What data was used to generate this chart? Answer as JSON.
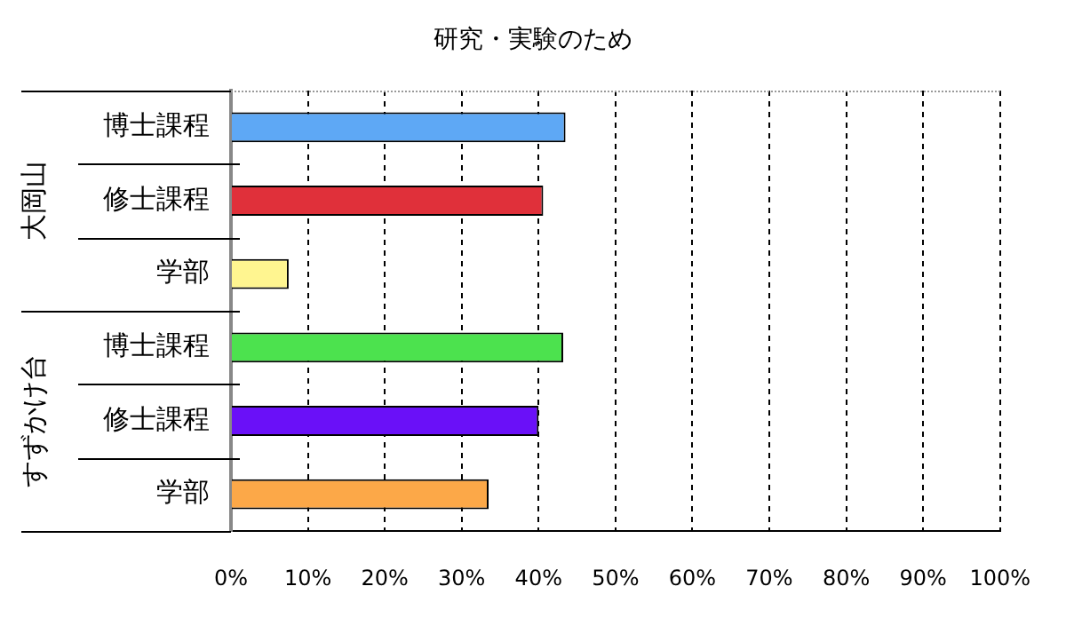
{
  "chart_data": {
    "type": "bar",
    "orientation": "horizontal",
    "title": "研究・実験のため",
    "categories": [
      "博士課程",
      "修士課程",
      "学部",
      "博士課程",
      "修士課程",
      "学部"
    ],
    "values": [
      43.5,
      40.6,
      7.5,
      43.2,
      40.0,
      33.5
    ],
    "colors": [
      "#5ea8f5",
      "#e0303a",
      "#fff590",
      "#4ce24e",
      "#6a10f8",
      "#fca848"
    ],
    "xlim": [
      0,
      100
    ],
    "xticks": [
      {
        "value": 0,
        "label": "0%"
      },
      {
        "value": 10,
        "label": "10%"
      },
      {
        "value": 20,
        "label": "20%"
      },
      {
        "value": 30,
        "label": "30%"
      },
      {
        "value": 40,
        "label": "40%"
      },
      {
        "value": 50,
        "label": "50%"
      },
      {
        "value": 60,
        "label": "60%"
      },
      {
        "value": 70,
        "label": "70%"
      },
      {
        "value": 80,
        "label": "80%"
      },
      {
        "value": 90,
        "label": "90%"
      },
      {
        "value": 100,
        "label": "100%"
      }
    ],
    "annotations": [
      "大岡山",
      "すずかけ台"
    ],
    "grid": "x",
    "legend": false
  }
}
